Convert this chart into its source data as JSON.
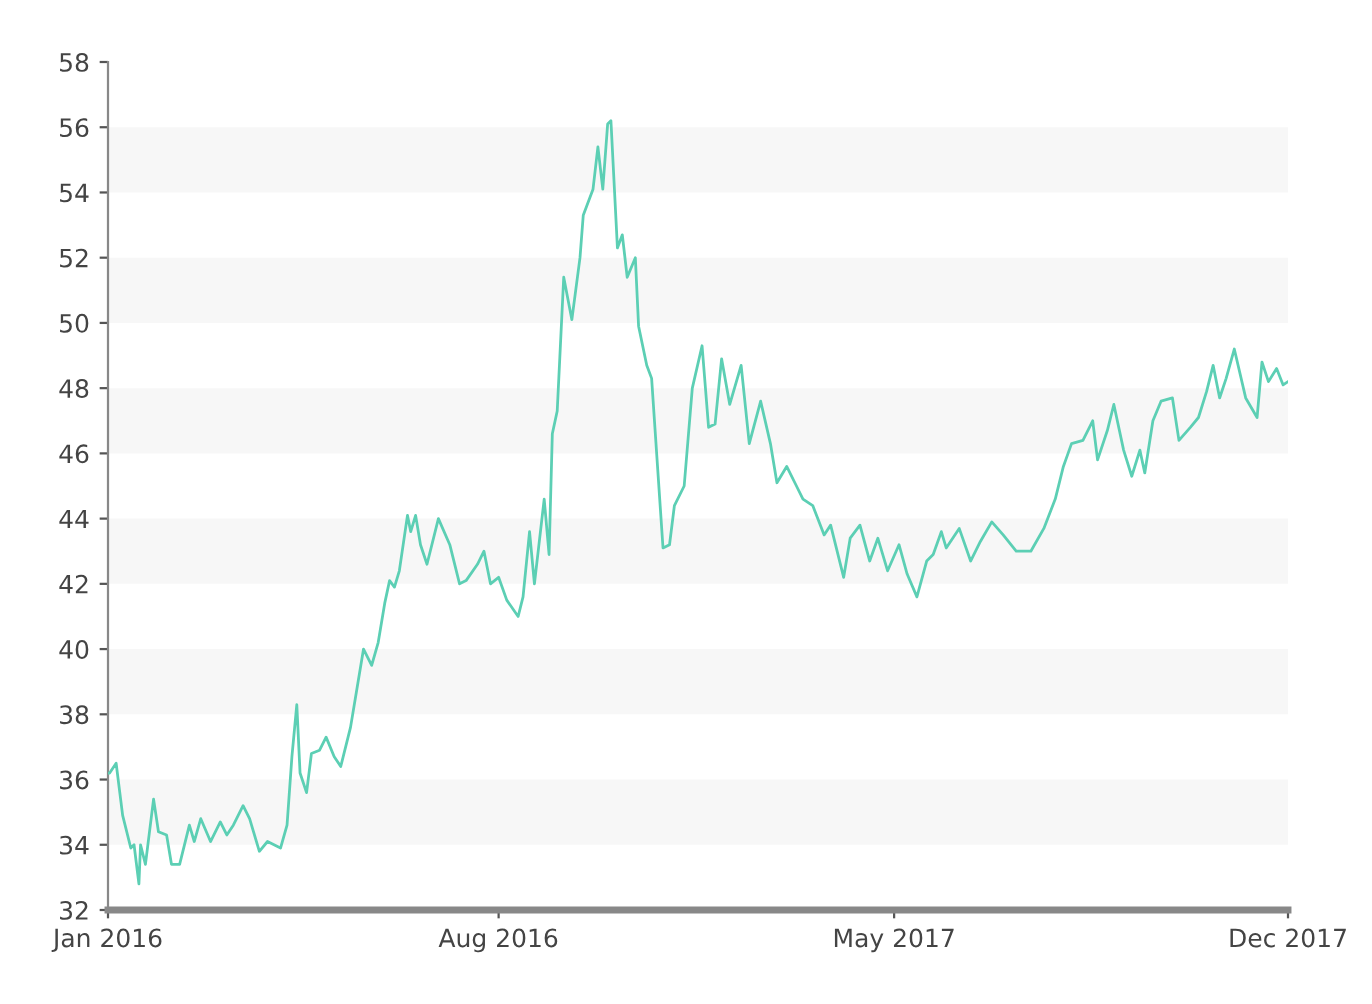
{
  "chart_data": {
    "type": "line",
    "xlim": [
      "2016-01-04",
      "2017-12-29"
    ],
    "ylim": [
      32,
      58
    ],
    "xticks": [
      {
        "value": "2016-01-04",
        "label": "Jan 2016"
      },
      {
        "value": "2016-08-31",
        "label": "Aug 2016"
      },
      {
        "value": "2017-05-01",
        "label": "May 2017"
      },
      {
        "value": "2017-12-29",
        "label": "Dec 2017"
      }
    ],
    "yticks": [
      32,
      34,
      36,
      38,
      40,
      42,
      44,
      46,
      48,
      50,
      52,
      54,
      56,
      58
    ],
    "bands": [
      {
        "axis": "y",
        "from": 34,
        "to": 36,
        "color": "#f7f7f7"
      },
      {
        "axis": "y",
        "from": 38,
        "to": 40,
        "color": "#f7f7f7"
      },
      {
        "axis": "y",
        "from": 42,
        "to": 44,
        "color": "#f7f7f7"
      },
      {
        "axis": "y",
        "from": 46,
        "to": 48,
        "color": "#f7f7f7"
      },
      {
        "axis": "y",
        "from": 50,
        "to": 52,
        "color": "#f7f7f7"
      },
      {
        "axis": "y",
        "from": 54,
        "to": 56,
        "color": "#f7f7f7"
      }
    ],
    "line_style": "solid",
    "marker": "none",
    "series": [
      {
        "color": "#5ccfb4",
        "x": [
          "2016-01-04",
          "2016-01-05",
          "2016-01-09",
          "2016-01-11",
          "2016-01-13",
          "2016-01-18",
          "2016-01-20",
          "2016-01-23",
          "2016-01-24",
          "2016-01-27",
          "2016-02-01",
          "2016-02-04",
          "2016-02-09",
          "2016-02-12",
          "2016-02-17",
          "2016-02-23",
          "2016-02-26",
          "2016-03-01",
          "2016-03-07",
          "2016-03-13",
          "2016-03-17",
          "2016-03-21",
          "2016-03-27",
          "2016-03-31",
          "2016-04-06",
          "2016-04-11",
          "2016-04-19",
          "2016-04-23",
          "2016-04-26",
          "2016-04-29",
          "2016-05-01",
          "2016-05-05",
          "2016-05-08",
          "2016-05-13",
          "2016-05-17",
          "2016-05-22",
          "2016-05-26",
          "2016-06-01",
          "2016-06-05",
          "2016-06-09",
          "2016-06-14",
          "2016-06-18",
          "2016-06-22",
          "2016-06-25",
          "2016-06-28",
          "2016-07-01",
          "2016-07-06",
          "2016-07-08",
          "2016-07-11",
          "2016-07-14",
          "2016-07-18",
          "2016-07-25",
          "2016-08-01",
          "2016-08-07",
          "2016-08-11",
          "2016-08-18",
          "2016-08-22",
          "2016-08-26",
          "2016-08-31",
          "2016-09-05",
          "2016-09-12",
          "2016-09-15",
          "2016-09-19",
          "2016-09-22",
          "2016-09-28",
          "2016-10-01",
          "2016-10-03",
          "2016-10-06",
          "2016-10-10",
          "2016-10-15",
          "2016-10-20",
          "2016-10-22",
          "2016-10-28",
          "2016-10-31",
          "2016-11-03",
          "2016-11-06",
          "2016-11-08",
          "2016-11-12",
          "2016-11-15",
          "2016-11-18",
          "2016-11-23",
          "2016-11-25",
          "2016-11-30",
          "2016-12-03",
          "2016-12-10",
          "2016-12-14",
          "2016-12-17",
          "2016-12-23",
          "2016-12-28",
          "2017-01-03",
          "2017-01-07",
          "2017-01-11",
          "2017-01-15",
          "2017-01-20",
          "2017-01-27",
          "2017-02-01",
          "2017-02-08",
          "2017-02-14",
          "2017-02-18",
          "2017-02-24",
          "2017-03-02",
          "2017-03-06",
          "2017-03-12",
          "2017-03-19",
          "2017-03-23",
          "2017-03-31",
          "2017-04-04",
          "2017-04-10",
          "2017-04-16",
          "2017-04-21",
          "2017-04-27",
          "2017-05-04",
          "2017-05-09",
          "2017-05-15",
          "2017-05-21",
          "2017-05-25",
          "2017-05-30",
          "2017-06-02",
          "2017-06-10",
          "2017-06-17",
          "2017-06-23",
          "2017-06-30",
          "2017-07-07",
          "2017-07-15",
          "2017-07-24",
          "2017-08-01",
          "2017-08-08",
          "2017-08-13",
          "2017-08-18",
          "2017-08-25",
          "2017-08-31",
          "2017-09-03",
          "2017-09-09",
          "2017-09-13",
          "2017-09-19",
          "2017-09-24",
          "2017-09-29",
          "2017-10-02",
          "2017-10-07",
          "2017-10-12",
          "2017-10-19",
          "2017-10-23",
          "2017-10-30",
          "2017-11-04",
          "2017-11-09",
          "2017-11-13",
          "2017-11-17",
          "2017-11-21",
          "2017-11-26",
          "2017-12-03",
          "2017-12-10",
          "2017-12-13",
          "2017-12-17",
          "2017-12-22",
          "2017-12-26",
          "2017-12-29"
        ],
        "values": [
          36.2,
          36.2,
          36.5,
          35.7,
          34.9,
          33.9,
          34.0,
          32.8,
          34.0,
          33.4,
          35.4,
          34.4,
          34.3,
          33.4,
          33.4,
          34.6,
          34.1,
          34.8,
          34.1,
          34.7,
          34.3,
          34.6,
          35.2,
          34.8,
          33.8,
          34.1,
          33.9,
          34.6,
          36.7,
          38.3,
          36.2,
          35.6,
          36.8,
          36.9,
          37.3,
          36.7,
          36.4,
          37.6,
          38.8,
          40.0,
          39.5,
          40.2,
          41.4,
          42.1,
          41.9,
          42.4,
          44.1,
          43.6,
          44.1,
          43.2,
          42.6,
          44.0,
          43.2,
          42.0,
          42.1,
          42.6,
          43.0,
          42.0,
          42.2,
          41.5,
          41.0,
          41.6,
          43.6,
          42.0,
          44.6,
          42.9,
          46.6,
          47.3,
          51.4,
          50.1,
          52.0,
          53.3,
          54.1,
          55.4,
          54.1,
          56.1,
          56.2,
          52.3,
          52.7,
          51.4,
          52.0,
          49.9,
          48.7,
          48.3,
          43.1,
          43.2,
          44.4,
          45.0,
          48.0,
          49.3,
          46.8,
          46.9,
          48.9,
          47.5,
          48.7,
          46.3,
          47.6,
          46.3,
          45.1,
          45.6,
          45.0,
          44.6,
          44.4,
          43.5,
          43.8,
          42.2,
          43.4,
          43.8,
          42.7,
          43.4,
          42.4,
          43.2,
          42.3,
          41.6,
          42.7,
          42.9,
          43.6,
          43.1,
          43.7,
          42.7,
          43.3,
          43.9,
          43.5,
          43.0,
          43.0,
          43.7,
          44.6,
          45.6,
          46.3,
          46.4,
          47.0,
          45.8,
          46.7,
          47.5,
          46.1,
          45.3,
          46.1,
          45.4,
          47.0,
          47.6,
          47.7,
          46.4,
          46.8,
          47.1,
          47.9,
          48.7,
          47.7,
          48.3,
          49.2,
          47.7,
          47.1,
          48.8,
          48.2,
          48.6,
          48.1,
          48.2
        ]
      }
    ]
  }
}
